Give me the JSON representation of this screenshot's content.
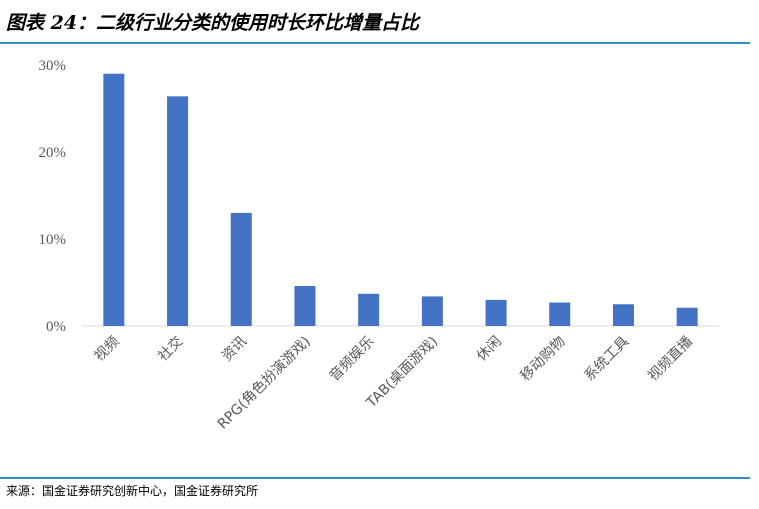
{
  "header": {
    "title": "图表 24：二级行业分类的使用时长环比增量占比"
  },
  "footer": {
    "source": "来源：国金证券研究创新中心，国金证券研究所"
  },
  "colors": {
    "bar": "#4472C4",
    "rule": "#2E8FC9",
    "axis": "#D9D9D9",
    "text": "#595959"
  },
  "chart_data": {
    "type": "bar",
    "title": "",
    "xlabel": "",
    "ylabel": "",
    "ylim": [
      0,
      30
    ],
    "yticks": [
      "0%",
      "10%",
      "20%",
      "30%"
    ],
    "grid": false,
    "categories": [
      "视频",
      "社交",
      "资讯",
      "RPG(角色扮演游戏)",
      "音频娱乐",
      "TAB(桌面游戏)",
      "休闲",
      "移动购物",
      "系统工具",
      "视频直播"
    ],
    "values": [
      29.0,
      26.4,
      13.0,
      4.6,
      3.7,
      3.4,
      3.0,
      2.7,
      2.5,
      2.1
    ]
  }
}
